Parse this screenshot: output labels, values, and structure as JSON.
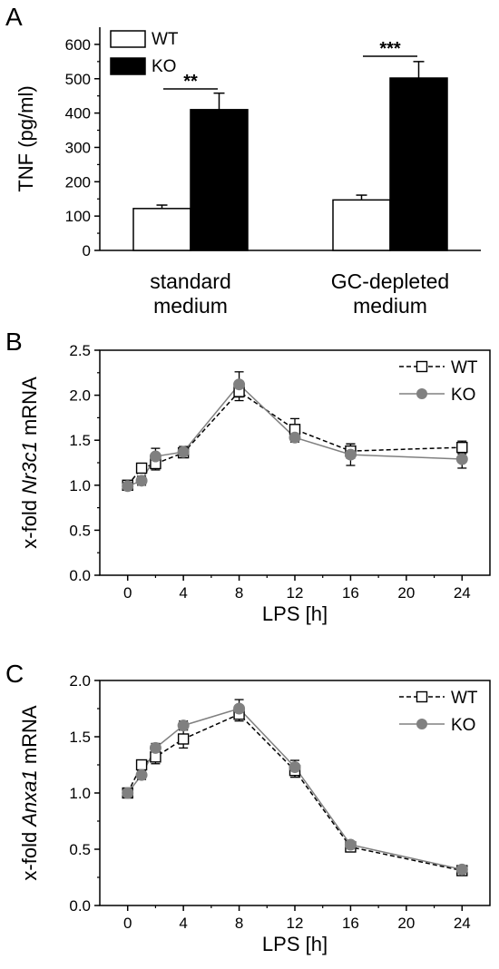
{
  "chart_data": [
    {
      "panel": "A",
      "type": "bar",
      "ylabel": "TNF (pg/ml)",
      "ylim": [
        0,
        650
      ],
      "yticks": [
        "0",
        "100",
        "200",
        "300",
        "400",
        "500",
        "600"
      ],
      "categories": [
        "standard\nmedium",
        "GC-depleted\nmedium"
      ],
      "series": [
        {
          "name": "WT",
          "values": [
            122,
            147
          ],
          "errors": [
            10,
            14
          ],
          "color": "#ffffff"
        },
        {
          "name": "KO",
          "values": [
            410,
            502
          ],
          "errors": [
            48,
            48
          ],
          "color": "#000000"
        }
      ],
      "significance": [
        "**",
        "***"
      ],
      "legend": "top-left"
    },
    {
      "panel": "B",
      "type": "line",
      "xlabel": "LPS [h]",
      "ylabel_parts": [
        "x-fold ",
        "Nr3c1",
        " mRNA"
      ],
      "xlim": [
        -2,
        26
      ],
      "ylim": [
        0,
        2.5
      ],
      "xticks": [
        "0",
        "4",
        "8",
        "12",
        "16",
        "20",
        "24"
      ],
      "yticks": [
        "0.0",
        "0.5",
        "1.0",
        "1.5",
        "2.0",
        "2.5"
      ],
      "x": [
        0,
        1,
        2,
        4,
        8,
        12,
        16,
        24
      ],
      "series": [
        {
          "name": "WT",
          "values": [
            1.0,
            1.19,
            1.24,
            1.36,
            2.04,
            1.62,
            1.38,
            1.42
          ],
          "errors": [
            0.04,
            0.04,
            0.07,
            0.05,
            0.1,
            0.12,
            0.08,
            0.07
          ],
          "color": "#000000",
          "marker": "square-open",
          "dash": "dashed"
        },
        {
          "name": "KO",
          "values": [
            0.99,
            1.05,
            1.32,
            1.37,
            2.12,
            1.53,
            1.34,
            1.29
          ],
          "errors": [
            0.04,
            0.05,
            0.09,
            0.06,
            0.14,
            0.05,
            0.12,
            0.1
          ],
          "color": "#808080",
          "marker": "circle-filled",
          "dash": "solid"
        }
      ],
      "legend": "top-right"
    },
    {
      "panel": "C",
      "type": "line",
      "xlabel": "LPS [h]",
      "ylabel_parts": [
        "x-fold ",
        "Anxa1",
        " mRNA"
      ],
      "xlim": [
        -2,
        26
      ],
      "ylim": [
        0,
        2.0
      ],
      "xticks": [
        "0",
        "4",
        "8",
        "12",
        "16",
        "20",
        "24"
      ],
      "yticks": [
        "0.0",
        "0.5",
        "1.0",
        "1.5",
        "2.0"
      ],
      "x": [
        0,
        1,
        2,
        4,
        8,
        12,
        16,
        24
      ],
      "series": [
        {
          "name": "WT",
          "values": [
            1.0,
            1.25,
            1.32,
            1.48,
            1.7,
            1.2,
            0.52,
            0.31
          ],
          "errors": [
            0.03,
            0.04,
            0.06,
            0.08,
            0.06,
            0.06,
            0.03,
            0.03
          ],
          "color": "#000000",
          "marker": "square-open",
          "dash": "dashed"
        },
        {
          "name": "KO",
          "values": [
            1.0,
            1.16,
            1.4,
            1.6,
            1.75,
            1.23,
            0.54,
            0.32
          ],
          "errors": [
            0.03,
            0.04,
            0.04,
            0.04,
            0.08,
            0.06,
            0.03,
            0.03
          ],
          "color": "#808080",
          "marker": "circle-filled",
          "dash": "solid"
        }
      ],
      "legend": "top-right"
    }
  ]
}
